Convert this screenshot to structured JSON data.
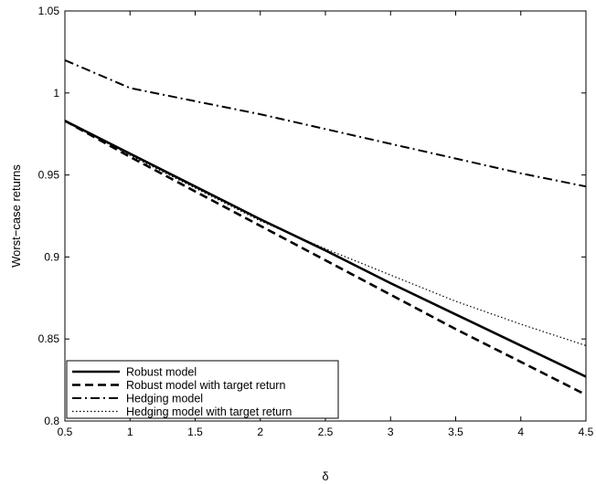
{
  "chart_data": {
    "type": "line",
    "xlabel": "δ",
    "ylabel": "Worst−case returns",
    "xlim": [
      0.5,
      4.5
    ],
    "ylim": [
      0.8,
      1.05
    ],
    "xticks": [
      "0.5",
      "1",
      "1.5",
      "2",
      "2.5",
      "3",
      "3.5",
      "4",
      "4.5"
    ],
    "yticks": [
      "0.8",
      "0.85",
      "0.9",
      "0.95",
      "1",
      "1.05"
    ],
    "grid": false,
    "legend_position": "bottom-left",
    "series": [
      {
        "name": "Robust model",
        "style": "solid",
        "x": [
          0.5,
          1.0,
          1.5,
          2.0,
          2.5,
          3.0,
          3.5,
          4.0,
          4.5
        ],
        "y": [
          0.983,
          0.963,
          0.943,
          0.923,
          0.904,
          0.884,
          0.865,
          0.846,
          0.827
        ]
      },
      {
        "name": "Robust model with target return",
        "style": "dashed",
        "x": [
          0.5,
          1.0,
          1.5,
          2.0,
          2.5,
          3.0,
          3.5,
          4.0,
          4.5
        ],
        "y": [
          0.983,
          0.961,
          0.94,
          0.919,
          0.898,
          0.877,
          0.856,
          0.836,
          0.816
        ]
      },
      {
        "name": "Hedging model",
        "style": "dashdot",
        "x": [
          0.5,
          1.0,
          1.5,
          2.0,
          2.5,
          3.0,
          3.5,
          4.0,
          4.5
        ],
        "y": [
          1.02,
          1.003,
          0.995,
          0.987,
          0.978,
          0.969,
          0.96,
          0.951,
          0.943
        ]
      },
      {
        "name": "Hedging model with target return",
        "style": "dotted",
        "x": [
          0.5,
          1.0,
          1.5,
          2.0,
          2.5,
          3.0,
          3.5,
          4.0,
          4.5
        ],
        "y": [
          0.983,
          0.962,
          0.942,
          0.922,
          0.905,
          0.889,
          0.873,
          0.859,
          0.846
        ]
      }
    ]
  }
}
